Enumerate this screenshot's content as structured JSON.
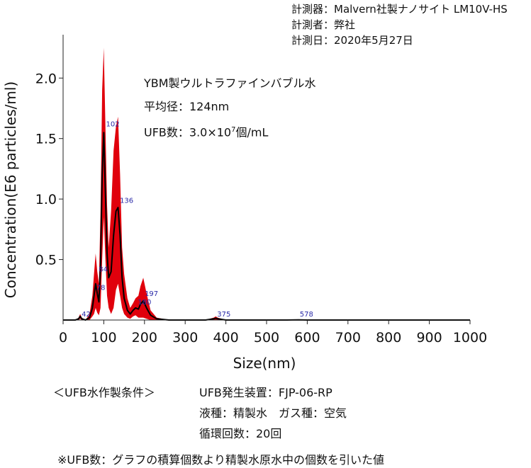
{
  "meta": {
    "instrument": "計測器：Malvern社製ナノサイト LM10V-HS",
    "measurer": "計測者：弊社",
    "date": "計測日：2020年5月27日"
  },
  "inset": {
    "title": "YBM製ウルトラファインバブル水",
    "mean_diameter": "平均径：124nm",
    "ufb_count_prefix": "UFB数：3.0×10",
    "ufb_count_exp": "7",
    "ufb_count_suffix": "個/mL"
  },
  "conditions": {
    "label": "＜UFB水作製条件＞",
    "device": "UFB発生装置：FJP-06-RP",
    "liquid_gas": "液種：精製水　ガス種：空気",
    "cycles": "循環回数：20回"
  },
  "footnote": "※UFB数：グラフの積算個数より精製水原水中の個数を引いた値",
  "chart_data": {
    "type": "line",
    "xlabel": "Size(nm)",
    "ylabel": "Concentration(E6 particles/ml)",
    "xlim": [
      0,
      1000
    ],
    "ylim": [
      0,
      2.3
    ],
    "xticks": [
      "0",
      "100",
      "200",
      "300",
      "400",
      "500",
      "600",
      "700",
      "800",
      "900",
      "1000"
    ],
    "yticks": [
      "0.5",
      "1.0",
      "1.5",
      "2.0"
    ],
    "grid": false,
    "colors": {
      "mean_line": "#000000",
      "error_band": "#e0000c",
      "peak_labels": "#2a2aa8"
    },
    "series": [
      {
        "x": [
          0,
          30,
          38,
          42,
          46,
          55,
          65,
          72,
          76,
          80,
          84,
          88,
          92,
          96,
          100,
          104,
          108,
          112,
          118,
          124,
          130,
          135,
          140,
          145,
          150,
          158,
          165,
          172,
          178,
          185,
          190,
          197,
          205,
          215,
          230,
          260,
          300,
          350,
          370,
          375,
          380,
          400,
          450,
          550,
          578,
          600,
          700,
          1000
        ],
        "mean": [
          0,
          0,
          0.01,
          0.03,
          0.01,
          0,
          0.02,
          0.1,
          0.2,
          0.3,
          0.22,
          0.15,
          0.45,
          1.2,
          1.55,
          1.05,
          0.55,
          0.35,
          0.4,
          0.7,
          0.9,
          0.93,
          0.7,
          0.35,
          0.18,
          0.08,
          0.05,
          0.08,
          0.1,
          0.09,
          0.13,
          0.16,
          0.1,
          0.04,
          0.01,
          0,
          0,
          0,
          0.01,
          0.015,
          0.01,
          0,
          0,
          0,
          0.002,
          0,
          0,
          0
        ],
        "upper": [
          0,
          0,
          0.02,
          0.05,
          0.02,
          0,
          0.05,
          0.2,
          0.38,
          0.55,
          0.4,
          0.3,
          0.9,
          1.9,
          2.25,
          1.6,
          0.95,
          0.6,
          0.9,
          1.4,
          1.6,
          1.68,
          1.2,
          0.6,
          0.38,
          0.18,
          0.1,
          0.14,
          0.18,
          0.2,
          0.28,
          0.35,
          0.22,
          0.08,
          0.02,
          0,
          0,
          0,
          0.02,
          0.03,
          0.02,
          0,
          0,
          0,
          0.004,
          0,
          0,
          0
        ],
        "lower": [
          0,
          0,
          0,
          0.01,
          0,
          0,
          0,
          0.03,
          0.05,
          0.1,
          0.06,
          0.04,
          0.1,
          0.5,
          0.85,
          0.5,
          0.2,
          0.1,
          0.05,
          0.1,
          0.25,
          0.3,
          0.2,
          0.1,
          0.05,
          0.02,
          0.01,
          0.03,
          0.04,
          0.02,
          0.02,
          0.02,
          0.01,
          0,
          0,
          0,
          0,
          0,
          0,
          0,
          0,
          0,
          0,
          0,
          0,
          0,
          0,
          0
        ]
      }
    ],
    "peak_labels": [
      {
        "text": "42",
        "x": 42,
        "y": 0.03
      },
      {
        "text": "84",
        "x": 84,
        "y": 0.4
      },
      {
        "text": "78",
        "x": 78,
        "y": 0.25
      },
      {
        "text": "102",
        "x": 102,
        "y": 1.6
      },
      {
        "text": "136",
        "x": 136,
        "y": 0.97
      },
      {
        "text": "180",
        "x": 180,
        "y": 0.13
      },
      {
        "text": "197",
        "x": 197,
        "y": 0.2
      },
      {
        "text": "375",
        "x": 375,
        "y": 0.03
      },
      {
        "text": "578",
        "x": 578,
        "y": 0.03
      }
    ]
  }
}
